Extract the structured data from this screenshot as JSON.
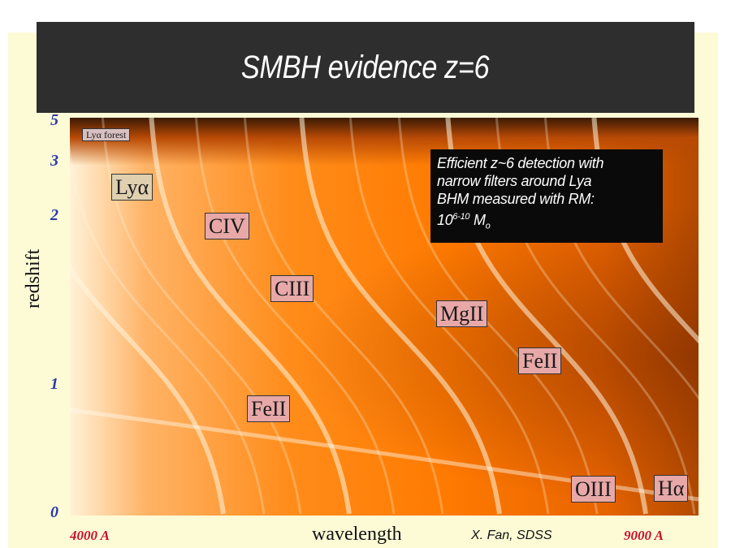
{
  "slide": {
    "title": "SMBH evidence z=6",
    "credit": "X. Fan, SDSS"
  },
  "note": {
    "line1": "Efficient z~6 detection with",
    "line2": "narrow filters around Lya",
    "line3": "BHM measured with RM:",
    "line4_base": "10",
    "line4_exp": "6-10",
    "line4_unit": " M",
    "line4_sub": "o"
  },
  "chart_data": {
    "type": "heatmap",
    "xlabel": "wavelength",
    "ylabel": "redshift",
    "x_tick_labels": [
      "4000 A",
      "9000 A"
    ],
    "xlim": [
      4000,
      9000
    ],
    "y_tick_labels": [
      "5",
      "3",
      "2",
      "1",
      "0"
    ],
    "y_ticks": [
      5,
      3,
      2,
      1,
      0
    ],
    "ylim": [
      0,
      5
    ],
    "y_scale": "log(1+z)",
    "line_labels": [
      {
        "name": "Lyα forest"
      },
      {
        "name": "Lyα"
      },
      {
        "name": "CIV"
      },
      {
        "name": "CIII"
      },
      {
        "name": "MgII"
      },
      {
        "name": "FeII"
      },
      {
        "name": "FeII"
      },
      {
        "name": "OIII"
      },
      {
        "name": "Hα"
      }
    ],
    "colors": {
      "colormap_low": "#b34a00",
      "colormap_mid": "#ff7a00",
      "colormap_high": "#fff2d8",
      "label_box": "#e8a8a8",
      "tick_blue": "#2a3aa8",
      "tick_red": "#c8102e"
    }
  }
}
